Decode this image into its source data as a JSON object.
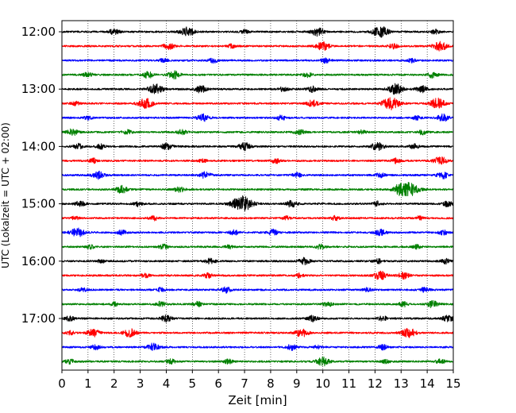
{
  "chart_data": {
    "type": "line",
    "title": "",
    "xlabel": "Zeit  [min]",
    "ylabel": "UTC (Lokalzeit = UTC + 02:00)",
    "xlim": [
      0,
      15
    ],
    "x_ticks": [
      "0",
      "1",
      "2",
      "3",
      "4",
      "5",
      "6",
      "7",
      "8",
      "9",
      "10",
      "11",
      "12",
      "13",
      "14",
      "15"
    ],
    "hour_labels": [
      "12:00",
      "13:00",
      "14:00",
      "15:00",
      "16:00",
      "17:00"
    ],
    "grid": "vertical dotted lines at every minute",
    "trace_interval_minutes": 15,
    "traces_per_hour": 4,
    "trace_count": 24,
    "trace_colors": [
      "#000000",
      "#ff0000",
      "#0000ff",
      "#008000"
    ],
    "series": [
      {
        "start": "12:00",
        "color": "#000000",
        "events": [
          [
            2,
            0.6
          ],
          [
            4.8,
            1.0
          ],
          [
            7,
            0.4
          ],
          [
            9.8,
            0.9
          ],
          [
            12.2,
            1.2
          ],
          [
            14.3,
            0.5
          ]
        ]
      },
      {
        "start": "12:15",
        "color": "#ff0000",
        "events": [
          [
            4.1,
            0.7
          ],
          [
            6.5,
            0.4
          ],
          [
            10,
            0.9
          ],
          [
            12.7,
            0.5
          ],
          [
            14.5,
            1.0
          ]
        ]
      },
      {
        "start": "12:30",
        "color": "#0000ff",
        "events": [
          [
            3.9,
            0.4
          ],
          [
            5.8,
            0.5
          ],
          [
            10.1,
            0.5
          ],
          [
            13.4,
            0.4
          ]
        ]
      },
      {
        "start": "12:45",
        "color": "#008000",
        "events": [
          [
            1,
            0.5
          ],
          [
            3.3,
            0.7
          ],
          [
            4.3,
            0.8
          ],
          [
            9.4,
            0.5
          ],
          [
            14.2,
            0.6
          ]
        ]
      },
      {
        "start": "13:00",
        "color": "#000000",
        "events": [
          [
            3.6,
            1.1
          ],
          [
            5.3,
            0.8
          ],
          [
            8.5,
            0.5
          ],
          [
            9.6,
            0.6
          ],
          [
            12.8,
            1.1
          ],
          [
            13.8,
            0.7
          ]
        ]
      },
      {
        "start": "13:15",
        "color": "#ff0000",
        "events": [
          [
            0.5,
            0.4
          ],
          [
            3.2,
            1.1
          ],
          [
            9.6,
            0.7
          ],
          [
            12.6,
            1.3
          ],
          [
            14.4,
            1.1
          ]
        ]
      },
      {
        "start": "13:30",
        "color": "#0000ff",
        "events": [
          [
            1,
            0.4
          ],
          [
            5.4,
            0.8
          ],
          [
            8.4,
            0.5
          ],
          [
            13.6,
            0.4
          ],
          [
            14.6,
            0.8
          ]
        ]
      },
      {
        "start": "13:45",
        "color": "#008000",
        "events": [
          [
            0.4,
            0.7
          ],
          [
            2.5,
            0.5
          ],
          [
            4.6,
            0.5
          ],
          [
            9.1,
            0.6
          ],
          [
            11.5,
            0.4
          ],
          [
            13.8,
            0.5
          ]
        ]
      },
      {
        "start": "14:00",
        "color": "#000000",
        "events": [
          [
            0.6,
            0.6
          ],
          [
            1.5,
            0.5
          ],
          [
            4,
            0.7
          ],
          [
            7,
            0.8
          ],
          [
            12.1,
            0.9
          ],
          [
            13.5,
            0.5
          ]
        ]
      },
      {
        "start": "14:15",
        "color": "#ff0000",
        "events": [
          [
            1.2,
            0.5
          ],
          [
            5.4,
            0.4
          ],
          [
            8.2,
            0.5
          ],
          [
            12.8,
            0.5
          ],
          [
            14.5,
            0.9
          ]
        ]
      },
      {
        "start": "14:30",
        "color": "#0000ff",
        "events": [
          [
            1.4,
            0.8
          ],
          [
            5.5,
            0.7
          ],
          [
            9,
            0.5
          ],
          [
            12.2,
            0.5
          ],
          [
            14.6,
            0.7
          ]
        ]
      },
      {
        "start": "14:45",
        "color": "#008000",
        "events": [
          [
            2.3,
            0.8
          ],
          [
            4.5,
            0.6
          ],
          [
            12.9,
            0.8
          ],
          [
            13.3,
            1.5
          ]
        ]
      },
      {
        "start": "15:00",
        "color": "#000000",
        "events": [
          [
            0.7,
            0.6
          ],
          [
            2.9,
            0.5
          ],
          [
            6.9,
            1.7
          ],
          [
            8.8,
            0.7
          ],
          [
            12.1,
            0.5
          ],
          [
            14.8,
            0.6
          ]
        ]
      },
      {
        "start": "15:15",
        "color": "#ff0000",
        "events": [
          [
            0.5,
            0.4
          ],
          [
            3.5,
            0.5
          ],
          [
            8.6,
            0.4
          ],
          [
            10.5,
            0.5
          ],
          [
            13.7,
            0.4
          ]
        ]
      },
      {
        "start": "15:30",
        "color": "#0000ff",
        "events": [
          [
            0.6,
            1.0
          ],
          [
            2.3,
            0.5
          ],
          [
            6.6,
            0.5
          ],
          [
            8.1,
            0.6
          ],
          [
            12.2,
            0.7
          ],
          [
            14.6,
            0.5
          ]
        ]
      },
      {
        "start": "15:45",
        "color": "#008000",
        "events": [
          [
            1.1,
            0.4
          ],
          [
            3.9,
            0.5
          ],
          [
            6.4,
            0.4
          ],
          [
            9.9,
            0.5
          ],
          [
            13.6,
            0.4
          ]
        ]
      },
      {
        "start": "16:00",
        "color": "#000000",
        "events": [
          [
            1.5,
            0.4
          ],
          [
            5.7,
            0.6
          ],
          [
            9.3,
            0.7
          ],
          [
            12.1,
            0.5
          ],
          [
            14.7,
            0.5
          ]
        ]
      },
      {
        "start": "16:15",
        "color": "#ff0000",
        "events": [
          [
            3.2,
            0.5
          ],
          [
            5.6,
            0.5
          ],
          [
            9.1,
            0.4
          ],
          [
            12.2,
            0.9
          ],
          [
            13.1,
            0.7
          ]
        ]
      },
      {
        "start": "16:30",
        "color": "#0000ff",
        "events": [
          [
            0.8,
            0.5
          ],
          [
            3.8,
            0.5
          ],
          [
            6.3,
            0.6
          ],
          [
            11.7,
            0.4
          ],
          [
            13.9,
            0.5
          ]
        ]
      },
      {
        "start": "16:45",
        "color": "#008000",
        "events": [
          [
            2,
            0.4
          ],
          [
            3.8,
            0.6
          ],
          [
            5.2,
            0.5
          ],
          [
            10.2,
            0.5
          ],
          [
            13.1,
            0.5
          ],
          [
            14.2,
            0.7
          ]
        ]
      },
      {
        "start": "17:00",
        "color": "#000000",
        "events": [
          [
            0.3,
            0.5
          ],
          [
            4,
            0.7
          ],
          [
            9.6,
            0.6
          ],
          [
            12.3,
            0.5
          ],
          [
            14.8,
            0.7
          ]
        ]
      },
      {
        "start": "17:15",
        "color": "#ff0000",
        "events": [
          [
            0.3,
            0.4
          ],
          [
            1.2,
            0.8
          ],
          [
            2.6,
            0.9
          ],
          [
            9.2,
            0.9
          ],
          [
            13.3,
            1.0
          ]
        ]
      },
      {
        "start": "17:30",
        "color": "#0000ff",
        "events": [
          [
            1.3,
            0.5
          ],
          [
            3.5,
            0.8
          ],
          [
            8.8,
            0.6
          ],
          [
            9.8,
            0.4
          ],
          [
            12.3,
            0.5
          ]
        ]
      },
      {
        "start": "17:45",
        "color": "#008000",
        "events": [
          [
            0.3,
            0.5
          ],
          [
            4.2,
            0.5
          ],
          [
            6.4,
            0.5
          ],
          [
            10,
            0.9
          ],
          [
            12.4,
            0.4
          ],
          [
            14.5,
            0.5
          ]
        ]
      }
    ]
  }
}
